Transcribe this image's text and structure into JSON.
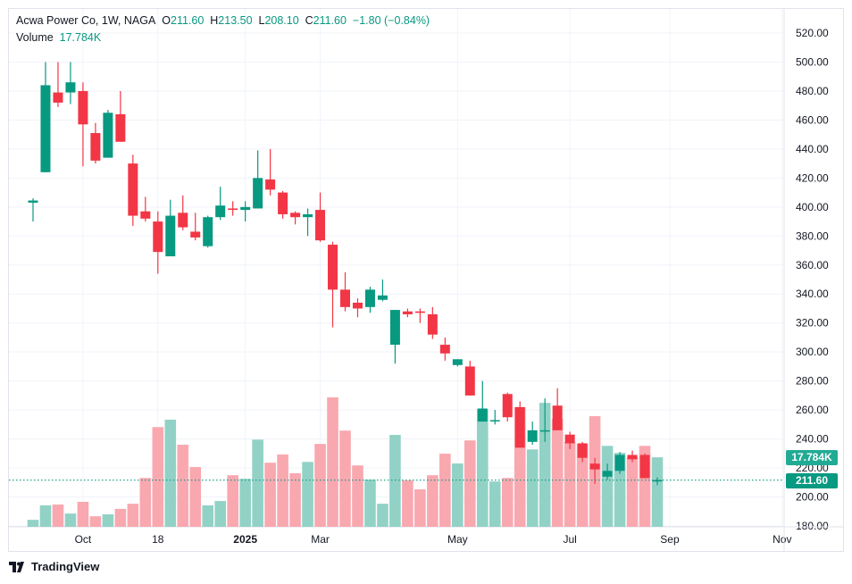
{
  "header": {
    "symbol": "Acwa Power Co, 1W, NAGA",
    "o_label": "O",
    "o": "211.60",
    "h_label": "H",
    "h": "213.50",
    "l_label": "L",
    "l": "208.10",
    "c_label": "C",
    "c": "211.60",
    "change": "−1.80 (−0.84%)",
    "volume_label": "Volume",
    "volume": "17.784K"
  },
  "badges": {
    "volume": "17.784K",
    "price": "211.60"
  },
  "colors": {
    "up": "#089981",
    "down": "#f23645",
    "up_vol": "#92d2c6",
    "down_vol": "#f9a8b0",
    "grid": "#f0f3fa"
  },
  "branding": "TradingView",
  "chart_data": {
    "type": "candlestick",
    "title": "Acwa Power Co, 1W, NAGA",
    "ylim": [
      180,
      520
    ],
    "y_ticks": [
      "520.00",
      "500.00",
      "480.00",
      "460.00",
      "440.00",
      "420.00",
      "400.00",
      "380.00",
      "360.00",
      "340.00",
      "320.00",
      "300.00",
      "280.00",
      "260.00",
      "240.00",
      "220.00",
      "200.00",
      "180.00"
    ],
    "x_ticks": [
      {
        "label": "Oct",
        "index": 4
      },
      {
        "label": "18",
        "index": 10
      },
      {
        "label": "2025",
        "index": 17
      },
      {
        "label": "Mar",
        "index": 23
      },
      {
        "label": "May",
        "index": 34
      },
      {
        "label": "Jul",
        "index": 43
      },
      {
        "label": "Sep",
        "index": 51
      },
      {
        "label": "Nov",
        "index": 60
      }
    ],
    "last_price": 211.6,
    "ohlc": [
      [
        403,
        406,
        390,
        404.5
      ],
      [
        424,
        500,
        424,
        484
      ],
      [
        479,
        500,
        469,
        472
      ],
      [
        479,
        500,
        471,
        486
      ],
      [
        480,
        486,
        428,
        457
      ],
      [
        451,
        458,
        430,
        432
      ],
      [
        434,
        467,
        434,
        465
      ],
      [
        464,
        480,
        445,
        445
      ],
      [
        430,
        436,
        387,
        394
      ],
      [
        397,
        407,
        390,
        392
      ],
      [
        390,
        397,
        354,
        369
      ],
      [
        366,
        405,
        366,
        394
      ],
      [
        396,
        408,
        384,
        386
      ],
      [
        383,
        396,
        377,
        379
      ],
      [
        373,
        394,
        372,
        393
      ],
      [
        393,
        414,
        391,
        401
      ],
      [
        399,
        404,
        394,
        398
      ],
      [
        398,
        404,
        390,
        400
      ],
      [
        399,
        439,
        399,
        420
      ],
      [
        419,
        440,
        408,
        412
      ],
      [
        410,
        411,
        392,
        395
      ],
      [
        396,
        397,
        388,
        393
      ],
      [
        393,
        399,
        380,
        395
      ],
      [
        398,
        410,
        376,
        377
      ],
      [
        374,
        376,
        317,
        343
      ],
      [
        343,
        355,
        328,
        331
      ],
      [
        334,
        337,
        324,
        330
      ],
      [
        331,
        345,
        327,
        343
      ],
      [
        336,
        350,
        335,
        339
      ],
      [
        305,
        329,
        292,
        329
      ],
      [
        328,
        330,
        324,
        326
      ],
      [
        328,
        330,
        320,
        327
      ],
      [
        326,
        331,
        309,
        312
      ],
      [
        305,
        310,
        294,
        299
      ],
      [
        291,
        295,
        290,
        295
      ],
      [
        290,
        294,
        270,
        270
      ],
      [
        252,
        280,
        252,
        261
      ],
      [
        253,
        260,
        250,
        253
      ],
      [
        271,
        272,
        252,
        255
      ],
      [
        262,
        266,
        234,
        234
      ],
      [
        238,
        252,
        236,
        246
      ],
      [
        246,
        268,
        238,
        246
      ],
      [
        263,
        275,
        246,
        246
      ],
      [
        243,
        245,
        233,
        237
      ],
      [
        237,
        238,
        224,
        227
      ],
      [
        223,
        227,
        209,
        219
      ],
      [
        214,
        223,
        212,
        218
      ],
      [
        218,
        231,
        216,
        229
      ],
      [
        229,
        232,
        224,
        226
      ],
      [
        229,
        230,
        213,
        213
      ],
      [
        211.6,
        213.5,
        208.1,
        211.6
      ]
    ],
    "volume_k": [
      1.8,
      5.5,
      5.7,
      3.4,
      6.4,
      2.7,
      3.2,
      4.6,
      5.9,
      12.5,
      25.5,
      27.4,
      21.0,
      15.3,
      5.5,
      6.6,
      13.2,
      12.3,
      22.3,
      16.4,
      18.5,
      13.7,
      16.6,
      21.2,
      33.1,
      24.6,
      15.7,
      12.1,
      5.9,
      23.5,
      11.9,
      9.6,
      13.2,
      18.7,
      16.2,
      22.1,
      30.1,
      11.6,
      12.5,
      30.6,
      19.8,
      31.7,
      27.6,
      21.7,
      21.2,
      28.3,
      20.7,
      18.9,
      17.8,
      20.7,
      17.784
    ]
  }
}
